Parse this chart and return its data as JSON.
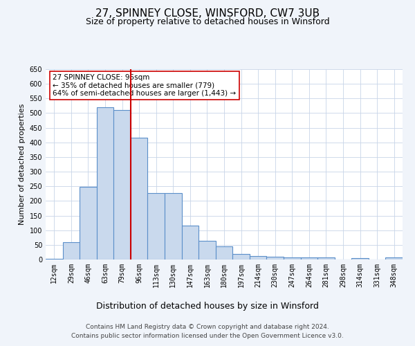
{
  "title": "27, SPINNEY CLOSE, WINSFORD, CW7 3UB",
  "subtitle": "Size of property relative to detached houses in Winsford",
  "xlabel": "Distribution of detached houses by size in Winsford",
  "ylabel": "Number of detached properties",
  "categories": [
    "12sqm",
    "29sqm",
    "46sqm",
    "63sqm",
    "79sqm",
    "96sqm",
    "113sqm",
    "130sqm",
    "147sqm",
    "163sqm",
    "180sqm",
    "197sqm",
    "214sqm",
    "230sqm",
    "247sqm",
    "264sqm",
    "281sqm",
    "298sqm",
    "314sqm",
    "331sqm",
    "348sqm"
  ],
  "values": [
    3,
    60,
    248,
    520,
    510,
    415,
    226,
    226,
    115,
    63,
    45,
    20,
    12,
    10,
    8,
    7,
    6,
    0,
    5,
    0,
    6
  ],
  "bar_color": "#c9d9ed",
  "bar_edge_color": "#5b8fc9",
  "vline_x_index": 4,
  "vline_color": "#cc0000",
  "annotation_text": "27 SPINNEY CLOSE: 95sqm\n← 35% of detached houses are smaller (779)\n64% of semi-detached houses are larger (1,443) →",
  "annotation_box_color": "white",
  "annotation_box_edge_color": "#cc0000",
  "ylim": [
    0,
    650
  ],
  "yticks": [
    0,
    50,
    100,
    150,
    200,
    250,
    300,
    350,
    400,
    450,
    500,
    550,
    600,
    650
  ],
  "footer_line1": "Contains HM Land Registry data © Crown copyright and database right 2024.",
  "footer_line2": "Contains public sector information licensed under the Open Government Licence v3.0.",
  "background_color": "#f0f4fa",
  "plot_background": "white",
  "grid_color": "#c8d4e8",
  "title_fontsize": 11,
  "subtitle_fontsize": 9,
  "xlabel_fontsize": 9,
  "ylabel_fontsize": 8,
  "tick_fontsize": 7,
  "footer_fontsize": 6.5,
  "annotation_fontsize": 7.5
}
